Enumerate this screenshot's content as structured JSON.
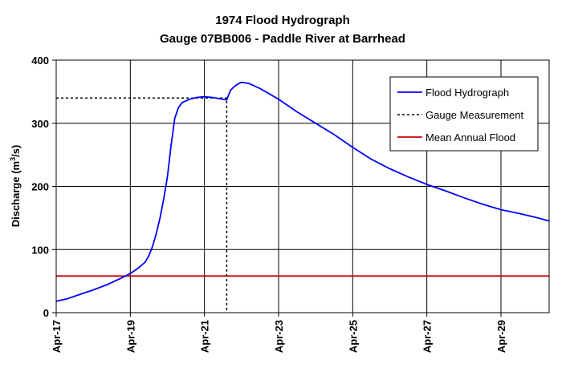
{
  "chart_data": {
    "type": "line",
    "title": "1974 Flood Hydrograph",
    "subtitle": "Gauge 07BB006 - Paddle River at Barrhead",
    "ylabel_main": "Discharge (m",
    "ylabel_sup": "3",
    "ylabel_tail": "/s)",
    "xlim": [
      17,
      30.3
    ],
    "ylim": [
      0,
      400
    ],
    "x_ticks": [
      17,
      19,
      21,
      23,
      25,
      27,
      29
    ],
    "x_tick_labels": [
      "Apr-17",
      "Apr-19",
      "Apr-21",
      "Apr-23",
      "Apr-25",
      "Apr-27",
      "Apr-29"
    ],
    "y_ticks": [
      0,
      100,
      200,
      300,
      400
    ],
    "y_tick_labels": [
      "0",
      "100",
      "200",
      "300",
      "400"
    ],
    "grid": true,
    "legend_position": "top-right",
    "series": [
      {
        "name": "Flood Hydrograph",
        "color": "#0000ff",
        "style": "solid",
        "x": [
          17.0,
          17.3,
          17.6,
          18.0,
          18.4,
          18.8,
          19.0,
          19.2,
          19.4,
          19.5,
          19.6,
          19.7,
          19.8,
          19.9,
          20.0,
          20.1,
          20.2,
          20.3,
          20.4,
          20.6,
          20.8,
          21.0,
          21.2,
          21.4,
          21.6,
          21.7,
          21.8,
          21.9,
          22.0,
          22.2,
          22.5,
          23.0,
          23.5,
          24.0,
          24.5,
          25.0,
          25.5,
          26.0,
          26.5,
          27.0,
          27.5,
          28.0,
          28.5,
          29.0,
          29.5,
          30.0,
          30.3
        ],
        "y": [
          18,
          22,
          28,
          36,
          45,
          56,
          62,
          70,
          80,
          90,
          105,
          125,
          150,
          180,
          215,
          265,
          308,
          325,
          333,
          338,
          341,
          342,
          341,
          339,
          337,
          352,
          358,
          362,
          365,
          363,
          355,
          338,
          318,
          300,
          282,
          262,
          243,
          228,
          215,
          203,
          193,
          182,
          172,
          163,
          157,
          150,
          145
        ]
      },
      {
        "name": "Gauge Measurement",
        "color": "#000000",
        "style": "dotted",
        "x": [
          17.0,
          21.6,
          21.6
        ],
        "y": [
          340,
          340,
          0
        ]
      },
      {
        "name": "Mean Annual Flood",
        "color": "#cc0000",
        "style": "solid",
        "x": [
          17.0,
          30.3
        ],
        "y": [
          58,
          58
        ]
      }
    ]
  }
}
